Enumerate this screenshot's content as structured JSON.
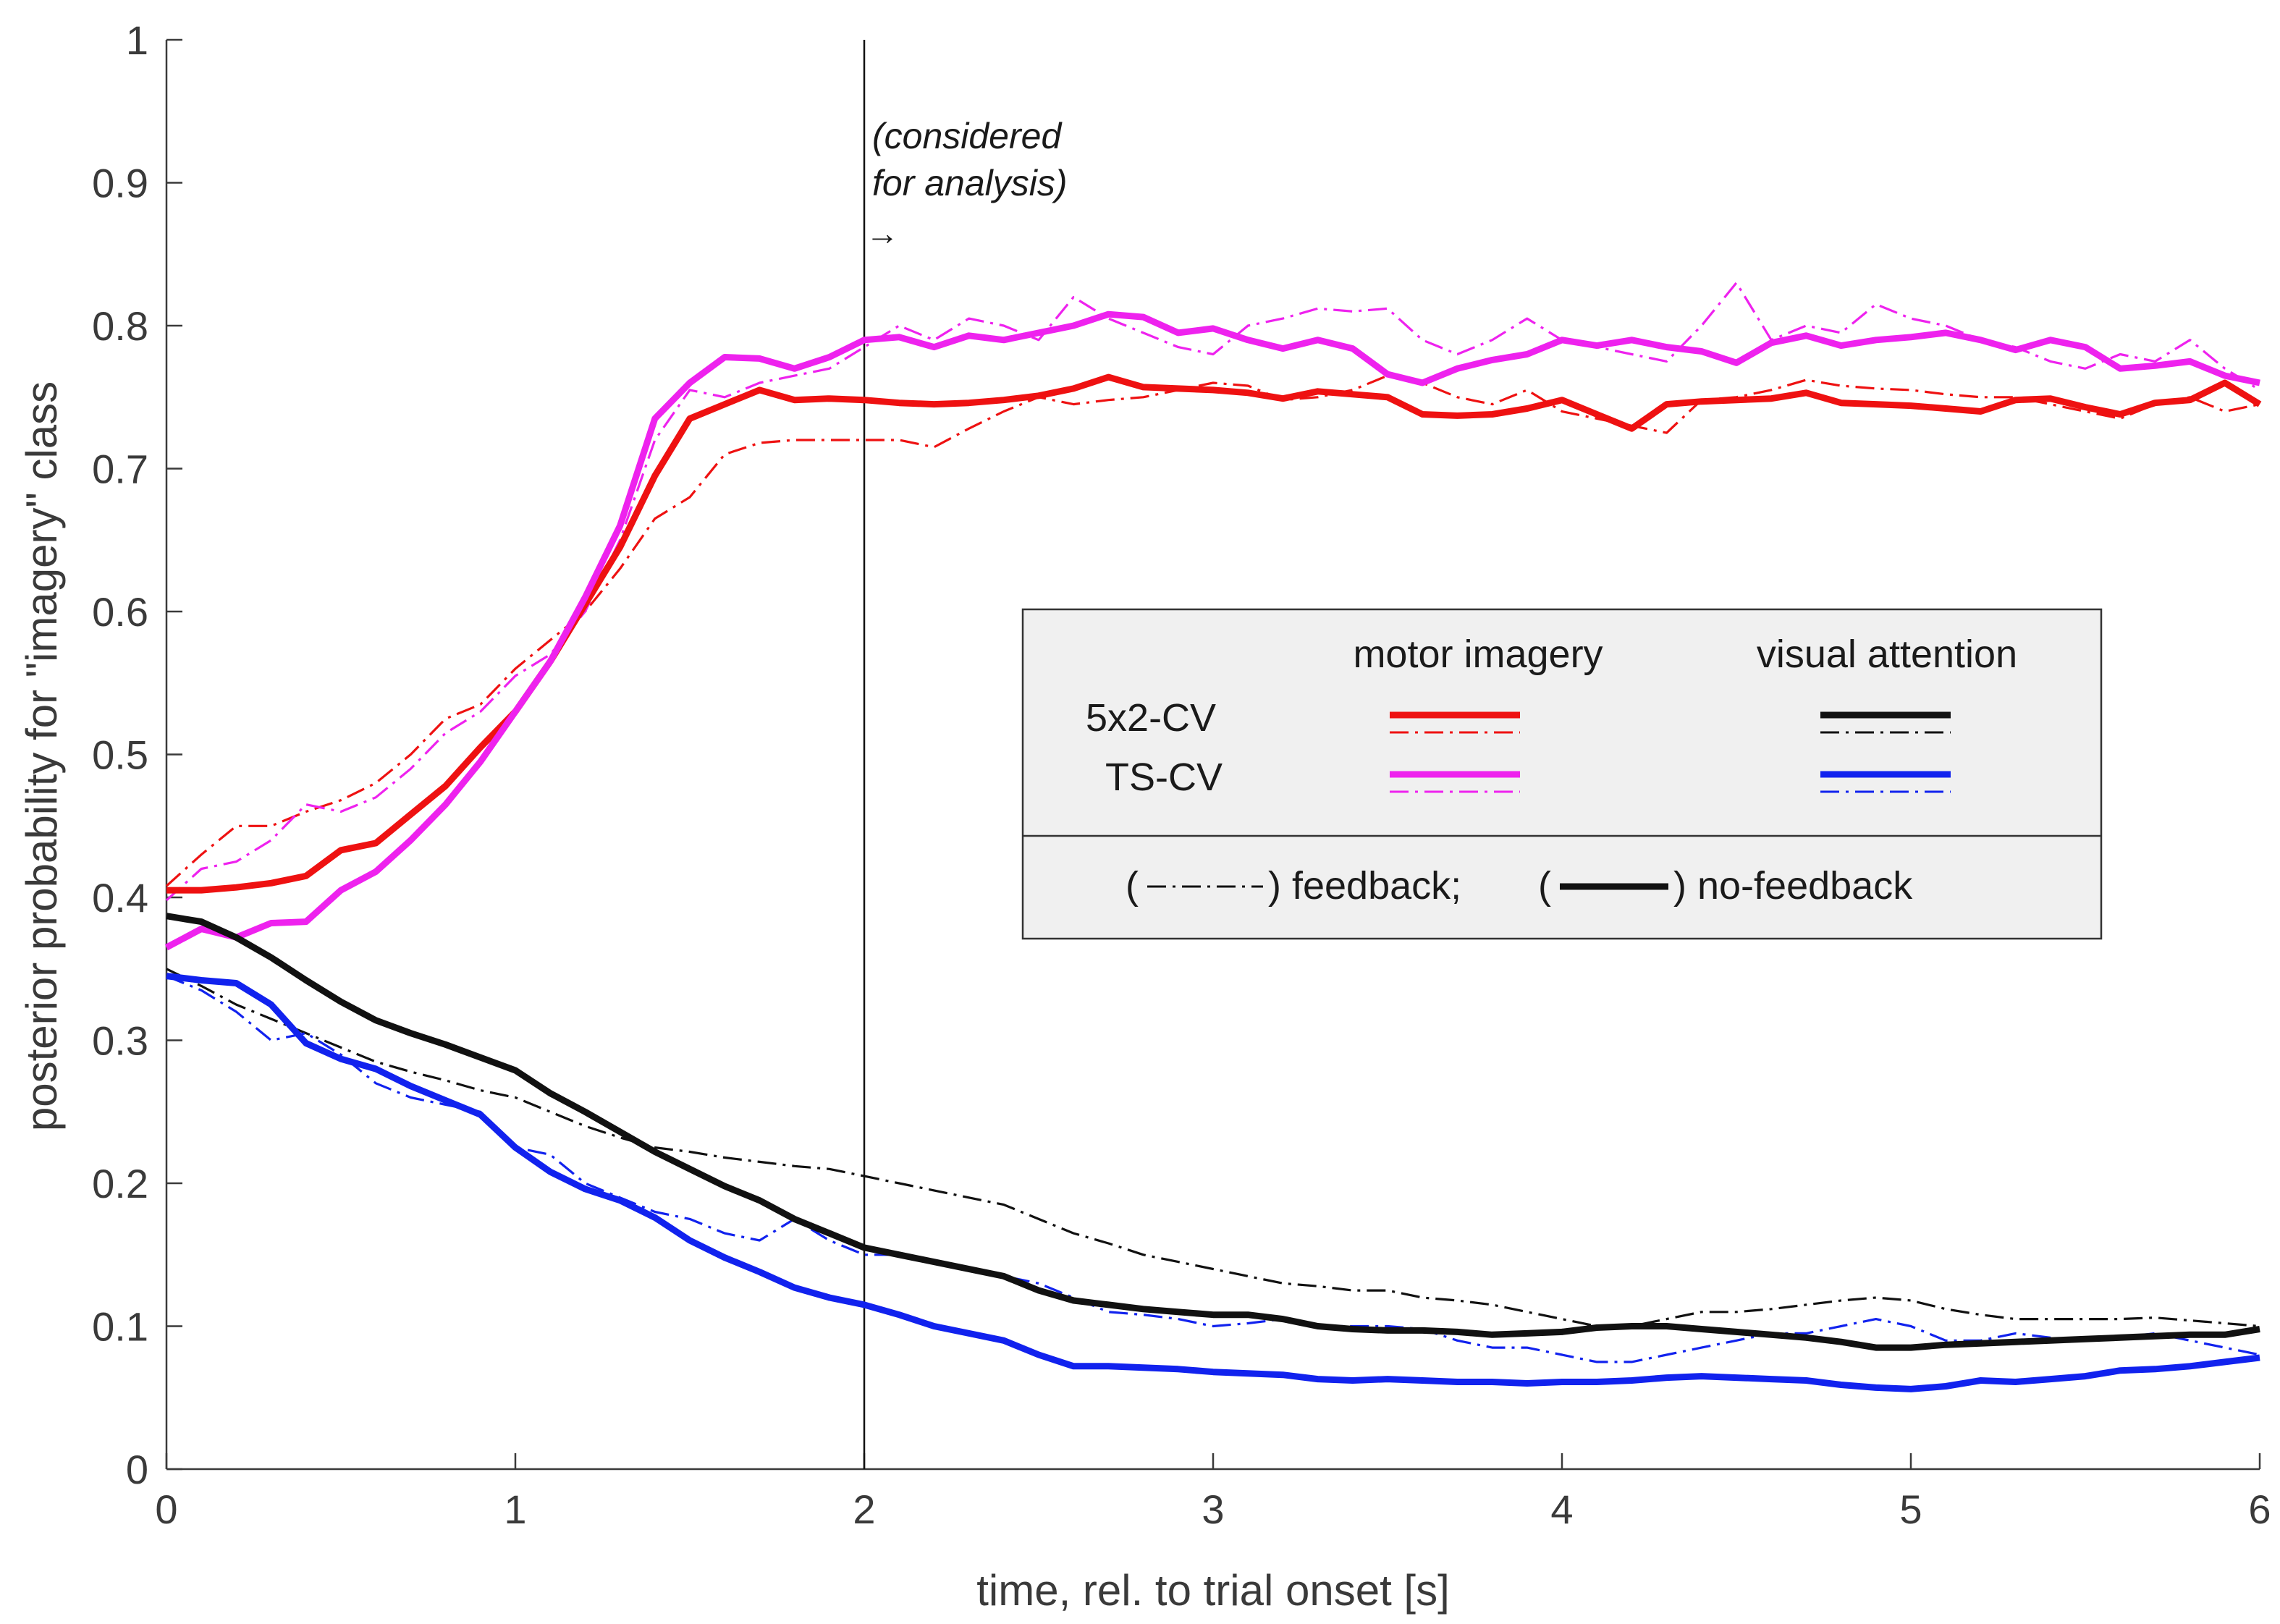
{
  "chart_data": {
    "type": "line",
    "title": "",
    "xlabel": "time, rel. to trial onset  [s]",
    "ylabel": "posterior probability for \"imagery\" class",
    "xlim": [
      0,
      6
    ],
    "ylim": [
      0,
      1
    ],
    "xticks": [
      0,
      1,
      2,
      3,
      4,
      5,
      6
    ],
    "yticks": [
      0,
      0.1,
      0.2,
      0.3,
      0.4,
      0.5,
      0.6,
      0.7,
      0.8,
      0.9,
      1
    ],
    "grid": false,
    "x": [
      0,
      0.1,
      0.2,
      0.3,
      0.4,
      0.5,
      0.6,
      0.7,
      0.8,
      0.9,
      1.0,
      1.1,
      1.2,
      1.3,
      1.4,
      1.5,
      1.6,
      1.7,
      1.8,
      1.9,
      2.0,
      2.1,
      2.2,
      2.3,
      2.4,
      2.5,
      2.6,
      2.7,
      2.8,
      2.9,
      3.0,
      3.1,
      3.2,
      3.3,
      3.4,
      3.5,
      3.6,
      3.7,
      3.8,
      3.9,
      4.0,
      4.1,
      4.2,
      4.3,
      4.4,
      4.5,
      4.6,
      4.7,
      4.8,
      4.9,
      5.0,
      5.1,
      5.2,
      5.3,
      5.4,
      5.5,
      5.6,
      5.7,
      5.8,
      5.9,
      6.0
    ],
    "series": [
      {
        "name": "motor imagery, 5x2-CV, no-feedback",
        "color": "#ee1111",
        "style": "solid",
        "values": [
          0.405,
          0.405,
          0.407,
          0.41,
          0.415,
          0.433,
          0.438,
          0.458,
          0.478,
          0.505,
          0.53,
          0.565,
          0.605,
          0.645,
          0.695,
          0.735,
          0.745,
          0.755,
          0.748,
          0.749,
          0.748,
          0.746,
          0.745,
          0.746,
          0.748,
          0.751,
          0.756,
          0.764,
          0.757,
          0.756,
          0.755,
          0.753,
          0.749,
          0.754,
          0.752,
          0.75,
          0.738,
          0.737,
          0.738,
          0.742,
          0.748,
          0.738,
          0.728,
          0.745,
          0.747,
          0.748,
          0.749,
          0.753,
          0.746,
          0.745,
          0.744,
          0.742,
          0.74,
          0.748,
          0.749,
          0.743,
          0.738,
          0.746,
          0.748,
          0.76,
          0.745
        ]
      },
      {
        "name": "motor imagery, 5x2-CV, feedback",
        "color": "#ee1111",
        "style": "dashdot",
        "values": [
          0.408,
          0.43,
          0.45,
          0.45,
          0.46,
          0.468,
          0.48,
          0.5,
          0.525,
          0.535,
          0.56,
          0.58,
          0.6,
          0.63,
          0.665,
          0.68,
          0.71,
          0.718,
          0.72,
          0.72,
          0.72,
          0.72,
          0.715,
          0.728,
          0.74,
          0.75,
          0.745,
          0.748,
          0.75,
          0.755,
          0.76,
          0.758,
          0.748,
          0.75,
          0.755,
          0.765,
          0.76,
          0.75,
          0.745,
          0.755,
          0.74,
          0.735,
          0.73,
          0.725,
          0.748,
          0.75,
          0.755,
          0.762,
          0.758,
          0.756,
          0.755,
          0.752,
          0.75,
          0.75,
          0.745,
          0.74,
          0.735,
          0.745,
          0.75,
          0.74,
          0.745
        ]
      },
      {
        "name": "motor imagery, TS-CV, no-feedback",
        "color": "#ee22ee",
        "style": "solid",
        "values": [
          0.365,
          0.378,
          0.372,
          0.382,
          0.383,
          0.405,
          0.418,
          0.44,
          0.465,
          0.495,
          0.53,
          0.565,
          0.61,
          0.66,
          0.735,
          0.76,
          0.778,
          0.777,
          0.77,
          0.778,
          0.79,
          0.792,
          0.785,
          0.793,
          0.79,
          0.795,
          0.8,
          0.808,
          0.806,
          0.795,
          0.798,
          0.79,
          0.784,
          0.79,
          0.784,
          0.766,
          0.76,
          0.77,
          0.776,
          0.78,
          0.79,
          0.786,
          0.79,
          0.785,
          0.782,
          0.774,
          0.788,
          0.793,
          0.786,
          0.79,
          0.792,
          0.795,
          0.79,
          0.783,
          0.79,
          0.785,
          0.77,
          0.772,
          0.775,
          0.765,
          0.76
        ]
      },
      {
        "name": "motor imagery, TS-CV, feedback",
        "color": "#ee22ee",
        "style": "dashdot",
        "values": [
          0.398,
          0.42,
          0.425,
          0.44,
          0.465,
          0.46,
          0.47,
          0.49,
          0.515,
          0.53,
          0.555,
          0.57,
          0.6,
          0.65,
          0.72,
          0.755,
          0.75,
          0.76,
          0.765,
          0.77,
          0.785,
          0.8,
          0.79,
          0.805,
          0.8,
          0.79,
          0.82,
          0.805,
          0.795,
          0.785,
          0.78,
          0.8,
          0.805,
          0.812,
          0.81,
          0.812,
          0.79,
          0.78,
          0.79,
          0.805,
          0.79,
          0.785,
          0.78,
          0.775,
          0.8,
          0.83,
          0.79,
          0.8,
          0.795,
          0.815,
          0.805,
          0.8,
          0.79,
          0.785,
          0.775,
          0.77,
          0.78,
          0.775,
          0.79,
          0.77,
          0.755
        ]
      },
      {
        "name": "visual attention, 5x2-CV, no-feedback",
        "color": "#111111",
        "style": "solid",
        "values": [
          0.387,
          0.383,
          0.372,
          0.358,
          0.342,
          0.327,
          0.314,
          0.305,
          0.297,
          0.288,
          0.279,
          0.263,
          0.25,
          0.236,
          0.222,
          0.21,
          0.198,
          0.188,
          0.175,
          0.165,
          0.155,
          0.15,
          0.145,
          0.14,
          0.135,
          0.125,
          0.118,
          0.115,
          0.112,
          0.11,
          0.108,
          0.108,
          0.105,
          0.1,
          0.098,
          0.097,
          0.097,
          0.096,
          0.094,
          0.095,
          0.096,
          0.099,
          0.1,
          0.1,
          0.098,
          0.096,
          0.094,
          0.092,
          0.089,
          0.085,
          0.085,
          0.087,
          0.088,
          0.089,
          0.09,
          0.091,
          0.092,
          0.093,
          0.094,
          0.094,
          0.098
        ]
      },
      {
        "name": "visual attention, 5x2-CV, feedback",
        "color": "#111111",
        "style": "dashdot",
        "values": [
          0.35,
          0.338,
          0.325,
          0.315,
          0.305,
          0.295,
          0.285,
          0.278,
          0.272,
          0.265,
          0.26,
          0.25,
          0.24,
          0.232,
          0.225,
          0.222,
          0.218,
          0.215,
          0.212,
          0.21,
          0.205,
          0.2,
          0.195,
          0.19,
          0.185,
          0.175,
          0.165,
          0.158,
          0.15,
          0.145,
          0.14,
          0.135,
          0.13,
          0.128,
          0.125,
          0.125,
          0.12,
          0.118,
          0.115,
          0.11,
          0.105,
          0.1,
          0.1,
          0.105,
          0.11,
          0.11,
          0.112,
          0.115,
          0.118,
          0.12,
          0.118,
          0.112,
          0.108,
          0.105,
          0.105,
          0.105,
          0.105,
          0.106,
          0.104,
          0.102,
          0.1
        ]
      },
      {
        "name": "visual attention, TS-CV, no-feedback",
        "color": "#1122ee",
        "style": "solid",
        "values": [
          0.345,
          0.342,
          0.34,
          0.325,
          0.298,
          0.287,
          0.28,
          0.268,
          0.258,
          0.248,
          0.225,
          0.208,
          0.196,
          0.188,
          0.176,
          0.16,
          0.148,
          0.138,
          0.127,
          0.12,
          0.115,
          0.108,
          0.1,
          0.095,
          0.09,
          0.08,
          0.072,
          0.072,
          0.071,
          0.07,
          0.068,
          0.067,
          0.066,
          0.063,
          0.062,
          0.063,
          0.062,
          0.061,
          0.061,
          0.06,
          0.061,
          0.061,
          0.062,
          0.064,
          0.065,
          0.064,
          0.063,
          0.062,
          0.059,
          0.057,
          0.056,
          0.058,
          0.062,
          0.061,
          0.063,
          0.065,
          0.069,
          0.07,
          0.072,
          0.075,
          0.078
        ]
      },
      {
        "name": "visual attention, TS-CV, feedback",
        "color": "#1122ee",
        "style": "dashdot",
        "values": [
          0.345,
          0.335,
          0.32,
          0.3,
          0.305,
          0.29,
          0.27,
          0.26,
          0.255,
          0.25,
          0.225,
          0.22,
          0.2,
          0.19,
          0.18,
          0.175,
          0.165,
          0.16,
          0.175,
          0.16,
          0.15,
          0.15,
          0.145,
          0.14,
          0.135,
          0.13,
          0.12,
          0.11,
          0.108,
          0.105,
          0.1,
          0.102,
          0.105,
          0.1,
          0.1,
          0.1,
          0.098,
          0.09,
          0.085,
          0.085,
          0.08,
          0.075,
          0.075,
          0.08,
          0.085,
          0.09,
          0.095,
          0.095,
          0.1,
          0.105,
          0.1,
          0.09,
          0.09,
          0.095,
          0.092,
          0.09,
          0.092,
          0.095,
          0.09,
          0.085,
          0.08
        ]
      }
    ],
    "annotations": {
      "vline_x": 2,
      "note_line1": "(considered",
      "note_line2": "for analysis)",
      "arrow": "→"
    },
    "legend": {
      "placement": "center-right",
      "col1_header": "motor imagery",
      "col2_header": "visual attention",
      "row1_label": "5x2-CV",
      "row2_label": "TS-CV",
      "feedback_open": "(",
      "feedback_close": ") feedback;",
      "nofeedback_open": "(",
      "nofeedback_close": ") no-feedback"
    }
  }
}
